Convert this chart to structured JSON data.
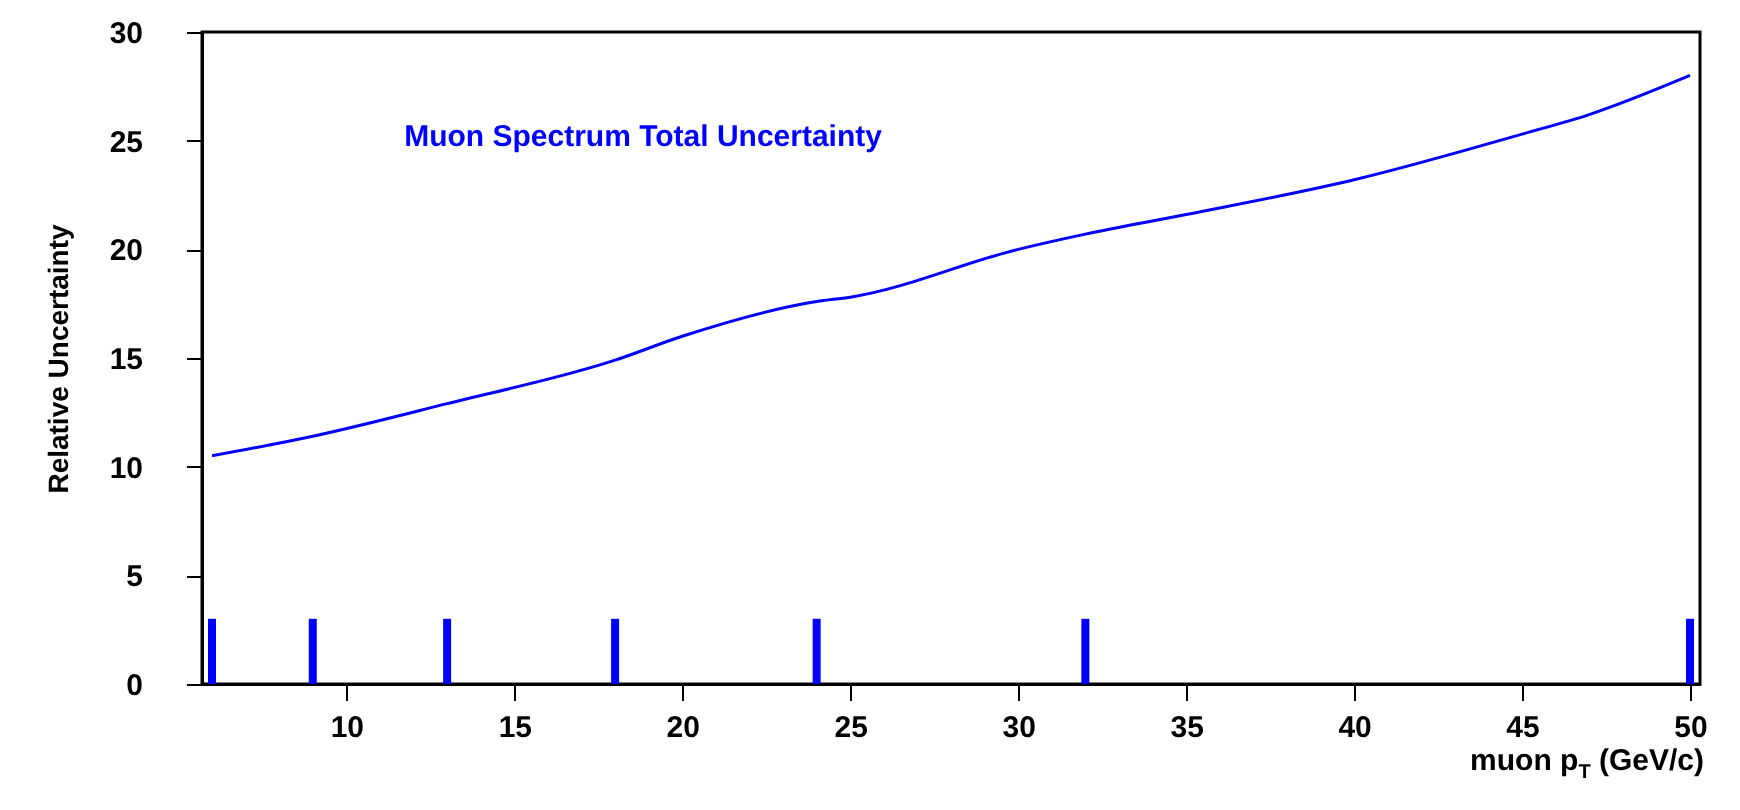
{
  "chart_data": {
    "type": "line",
    "xlabel": "muon p$_{T}$ (GeV/c)",
    "ylabel": "Relative Uncertainty",
    "xlim": [
      6,
      50
    ],
    "ylim": [
      0,
      30
    ],
    "xticks": [
      10,
      15,
      20,
      25,
      30,
      35,
      40,
      45,
      50
    ],
    "yticks": [
      0,
      5,
      10,
      15,
      20,
      25,
      30
    ],
    "grid": false,
    "series": [
      {
        "name": "Muon Spectrum Total Uncertainty",
        "color": "#0000ff",
        "x": [
          6,
          9,
          13,
          18,
          20,
          24,
          25,
          30,
          32,
          35,
          40,
          45,
          47,
          50
        ],
        "values": [
          10.5,
          11.4,
          12.9,
          14.9,
          16.0,
          17.6,
          17.8,
          20.0,
          20.7,
          21.6,
          23.2,
          25.3,
          26.2,
          28.0
        ]
      },
      {
        "color": "#0000ff",
        "type": "bar",
        "x": [
          6,
          9,
          13,
          18,
          24,
          32,
          50
        ],
        "values": [
          3,
          3,
          3,
          3,
          3,
          3,
          3
        ]
      }
    ]
  }
}
